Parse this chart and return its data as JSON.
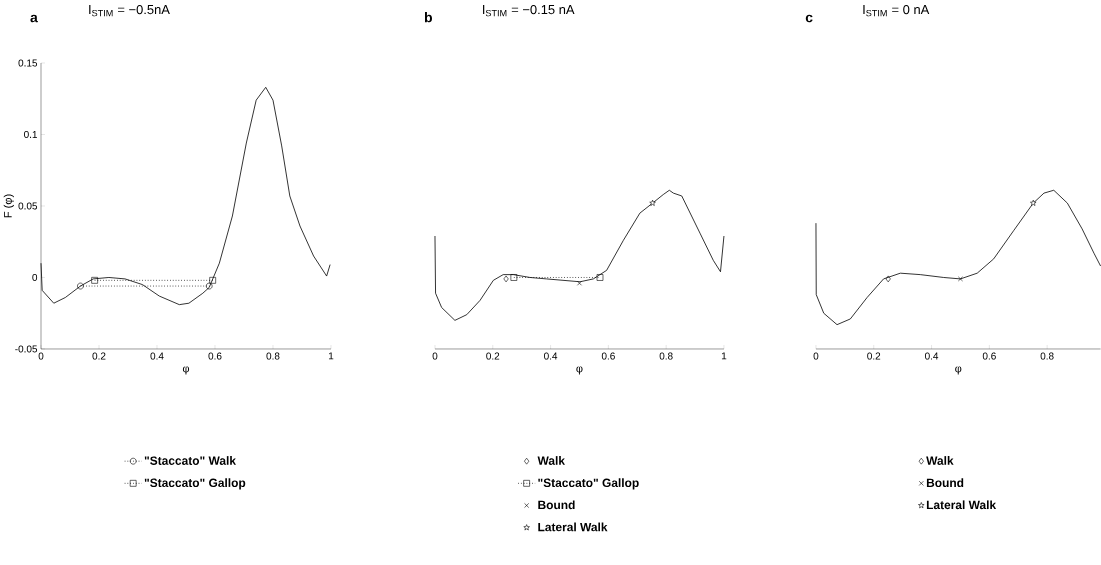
{
  "chart_data": [
    {
      "type": "line",
      "title": "I$_{STIM}$ = −0.5nA",
      "annotations": [
        "a"
      ],
      "xlabel": "φ",
      "ylabel": "F (φ)",
      "xlim": [
        0,
        1
      ],
      "xticks": [
        0,
        0.2,
        0.4,
        0.6,
        0.8,
        1
      ],
      "ylim": [
        -0.05,
        0.15
      ],
      "yticks": [
        -0.05,
        0,
        0.05,
        0.1,
        0.15
      ],
      "legend": "bottom",
      "series": [
        {
          "type": "line",
          "color": "#000000",
          "line_style": "solid",
          "marker": "none",
          "x": [
            0,
            0.004,
            0.044,
            0.084,
            0.136,
            0.18,
            0.234,
            0.29,
            0.35,
            0.408,
            0.477,
            0.51,
            0.558,
            0.58,
            0.615,
            0.66,
            0.708,
            0.742,
            0.775,
            0.8,
            0.83,
            0.858,
            0.893,
            0.94,
            0.985,
            0.997
          ],
          "values": [
            0.01,
            -0.009,
            -0.018,
            -0.014,
            -0.006,
            -0.001,
            0,
            -0.001,
            -0.005,
            -0.013,
            -0.019,
            -0.018,
            -0.011,
            -0.007,
            0.01,
            0.043,
            0.094,
            0.124,
            0.133,
            0.124,
            0.092,
            0.057,
            0.036,
            0.015,
            0.001,
            0.009
          ]
        },
        {
          "type": "line",
          "name": "\"Staccato\" Walk",
          "color": "#000000",
          "line_style": "dotted",
          "marker": "circle",
          "x": [
            0.136,
            0.58
          ],
          "values": [
            -0.006,
            -0.006
          ]
        },
        {
          "type": "line",
          "name": "\"Staccato\" Gallop",
          "color": "#000000",
          "line_style": "dotted",
          "marker": "square",
          "x": [
            0.185,
            0.592
          ],
          "values": [
            -0.002,
            -0.002
          ]
        }
      ]
    },
    {
      "type": "line",
      "title": "I$_{STIM}$ = −0.15 nA",
      "annotations": [
        "b"
      ],
      "xlabel": "φ",
      "xlim": [
        0,
        1
      ],
      "xticks": [
        0,
        0.2,
        0.4,
        0.6,
        0.8,
        1
      ],
      "ylim": [
        -0.05,
        0.15
      ],
      "tick_labels": "x",
      "legend": "bottom",
      "series": [
        {
          "type": "line",
          "color": "#000000",
          "line_style": "solid",
          "marker": "none",
          "x": [
            0,
            0.002,
            0.023,
            0.069,
            0.11,
            0.156,
            0.202,
            0.236,
            0.271,
            0.329,
            0.386,
            0.444,
            0.502,
            0.548,
            0.594,
            0.652,
            0.709,
            0.753,
            0.79,
            0.811,
            0.825,
            0.854,
            0.917,
            0.963,
            0.988,
            1.0
          ],
          "values": [
            0.029,
            -0.011,
            -0.021,
            -0.03,
            -0.026,
            -0.016,
            -0.002,
            0.002,
            0.002,
            0,
            -0.001,
            -0.002,
            -0.003,
            -0.001,
            0.005,
            0.026,
            0.045,
            0.052,
            0.058,
            0.061,
            0.059,
            0.057,
            0.031,
            0.012,
            0.004,
            0.029
          ]
        },
        {
          "type": "scatter",
          "name": "Walk",
          "color": "#000000",
          "marker": "diamond",
          "x": [
            0.246
          ],
          "values": [
            -0.001
          ]
        },
        {
          "type": "line",
          "name": "\"Staccato\" Gallop",
          "color": "#000000",
          "line_style": "dotted",
          "marker": "square",
          "x": [
            0.273,
            0.571
          ],
          "values": [
            0,
            0
          ]
        },
        {
          "type": "scatter",
          "name": "Bound",
          "color": "#000000",
          "marker": "cross",
          "x": [
            0.5
          ],
          "values": [
            -0.004
          ]
        },
        {
          "type": "scatter",
          "name": "Lateral Walk",
          "color": "#000000",
          "marker": "star",
          "x": [
            0.753
          ],
          "values": [
            0.052
          ]
        }
      ]
    },
    {
      "type": "line",
      "title": "I$_{STIM}$ = 0 nA",
      "annotations": [
        "c"
      ],
      "xlabel": "φ",
      "xlim": [
        0,
        0.985
      ],
      "xticks": [
        0,
        0.2,
        0.4,
        0.6,
        0.8
      ],
      "ylim": [
        -0.05,
        0.15
      ],
      "tick_labels": "x",
      "legend": "bottom",
      "series": [
        {
          "type": "line",
          "color": "#000000",
          "line_style": "solid",
          "marker": "none",
          "x": [
            0,
            0.001,
            0.027,
            0.073,
            0.119,
            0.177,
            0.234,
            0.292,
            0.361,
            0.442,
            0.5,
            0.558,
            0.615,
            0.685,
            0.752,
            0.789,
            0.823,
            0.87,
            0.921,
            0.962,
            0.985
          ],
          "values": [
            0.038,
            -0.012,
            -0.025,
            -0.033,
            -0.029,
            -0.014,
            -0.001,
            0.003,
            0.002,
            0,
            -0.001,
            0.003,
            0.013,
            0.033,
            0.052,
            0.059,
            0.061,
            0.052,
            0.034,
            0.017,
            0.008
          ]
        },
        {
          "type": "scatter",
          "name": "Walk",
          "color": "#000000",
          "marker": "diamond",
          "x": [
            0.25
          ],
          "values": [
            -0.001
          ]
        },
        {
          "type": "scatter",
          "name": "Bound",
          "color": "#000000",
          "marker": "cross",
          "x": [
            0.5
          ],
          "values": [
            -0.001
          ]
        },
        {
          "type": "scatter",
          "name": "Lateral  Walk",
          "color": "#000000",
          "marker": "star",
          "x": [
            0.752
          ],
          "values": [
            0.052
          ]
        }
      ]
    }
  ]
}
